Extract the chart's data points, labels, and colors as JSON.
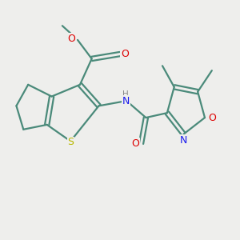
{
  "bg_color": "#eeeeec",
  "bond_color": "#4a8a7a",
  "S_color": "#b8b800",
  "O_color": "#dd0000",
  "N_color": "#1a1aee",
  "H_color": "#888888",
  "line_width": 1.6,
  "figsize": [
    3.0,
    3.0
  ],
  "dpi": 100,
  "xlim": [
    0,
    10
  ],
  "ylim": [
    0,
    10
  ]
}
